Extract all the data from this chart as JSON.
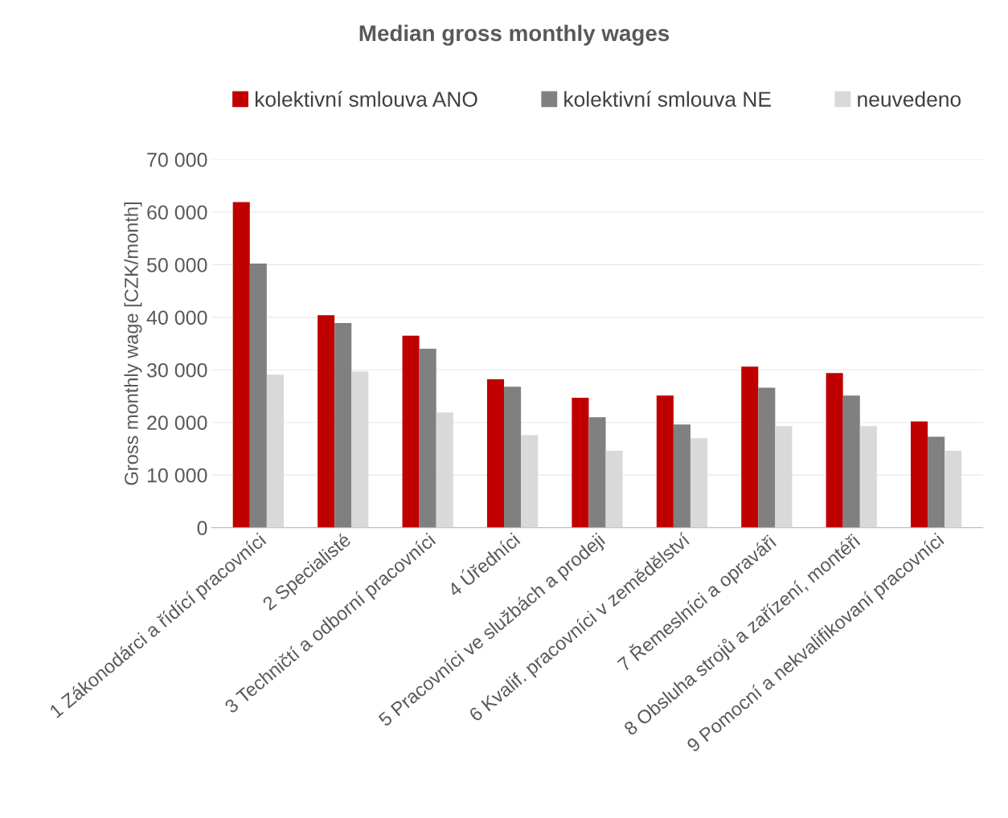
{
  "chart_data": {
    "type": "bar",
    "title": "Median gross monthly wages",
    "ylabel": "Gross monthly wage [CZK/month]",
    "categories": [
      "1 Zákonodárci a řídící pracovníci",
      "2 Specialisté",
      "3 Techničtí a odborní pracovníci",
      "4 Úředníci",
      "5 Pracovníci ve službách a prodeji",
      "6 Kvalif. pracovníci v zemědělství",
      "7 Řemeslníci a opraváři",
      "8 Obsluha strojů a zařízení, montéři",
      "9 Pomocní a nekvalifikovaní pracovníci"
    ],
    "series": [
      {
        "name": "kolektivní smlouva ANO",
        "color": "#c00000",
        "values": [
          61900,
          40400,
          36500,
          28200,
          24700,
          25100,
          30600,
          29400,
          20200
        ]
      },
      {
        "name": "kolektivní smlouva NE",
        "color": "#808080",
        "values": [
          50200,
          38900,
          34000,
          26800,
          21000,
          19600,
          26600,
          25100,
          17300
        ]
      },
      {
        "name": "neuvedeno",
        "color": "#d9d9d9",
        "values": [
          29100,
          29700,
          21900,
          17600,
          14600,
          17000,
          19300,
          19300,
          14600
        ]
      }
    ],
    "ylim": [
      0,
      70000
    ],
    "yticks": [
      0,
      {
        "value": 10000,
        "label": "10 000"
      },
      {
        "value": 20000,
        "label": "20 000"
      },
      {
        "value": 30000,
        "label": "30 000"
      },
      {
        "value": 40000,
        "label": "40 000"
      },
      {
        "value": 50000,
        "label": "50 000"
      },
      {
        "value": 60000,
        "label": "60 000"
      },
      {
        "value": 70000,
        "label": "70 000"
      }
    ],
    "grid": "y",
    "legend": "top"
  }
}
